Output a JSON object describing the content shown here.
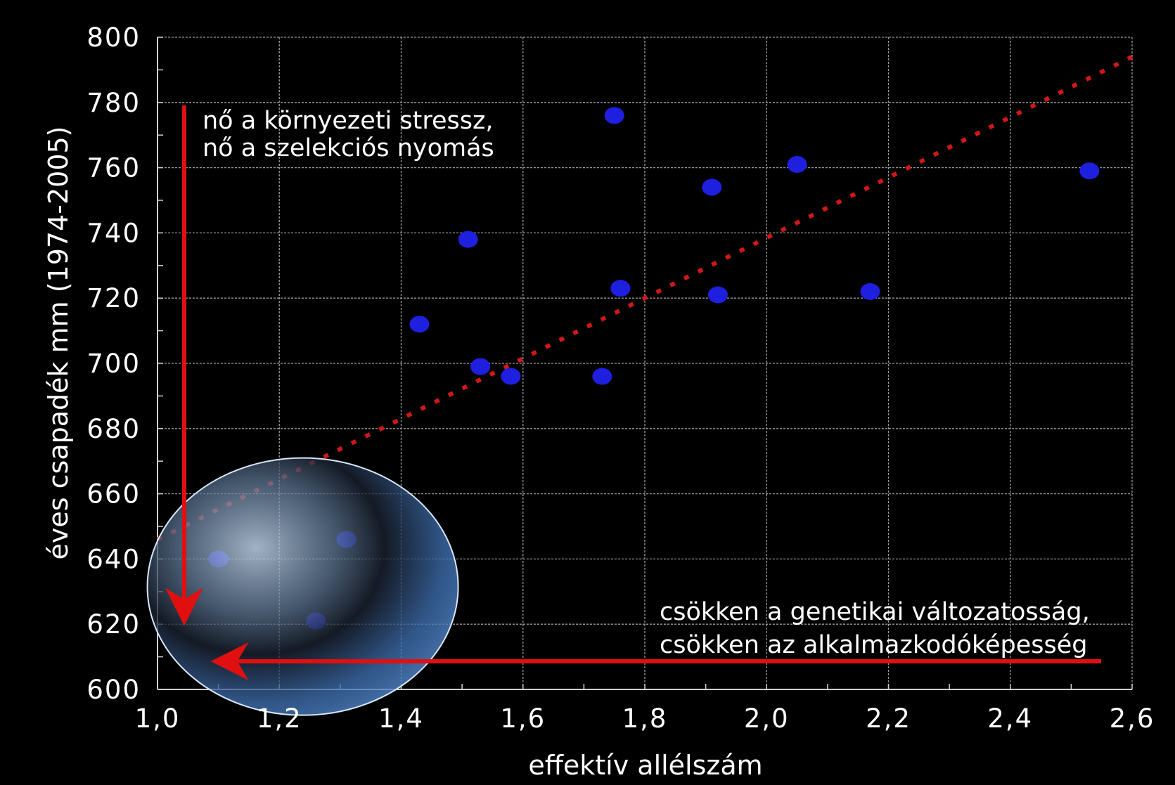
{
  "chart_data": {
    "type": "scatter",
    "xlabel": "effektív allélszám",
    "ylabel": "éves csapadék mm (1974-2005)",
    "xlim": [
      1.0,
      2.6
    ],
    "ylim": [
      600,
      800
    ],
    "x_ticks": [
      1.0,
      1.2,
      1.4,
      1.6,
      1.8,
      2.0,
      2.2,
      2.4,
      2.6
    ],
    "x_tick_labels": [
      "1,0",
      "1,2",
      "1,4",
      "1,6",
      "1,8",
      "2,0",
      "2,2",
      "2,4",
      "2,6"
    ],
    "y_ticks": [
      600,
      620,
      640,
      660,
      680,
      700,
      720,
      740,
      760,
      780,
      800
    ],
    "y_tick_labels": [
      "600",
      "620",
      "640",
      "660",
      "680",
      "700",
      "720",
      "740",
      "760",
      "780",
      "800"
    ],
    "grid": true,
    "points": [
      {
        "x": 1.1,
        "y": 640
      },
      {
        "x": 1.26,
        "y": 621
      },
      {
        "x": 1.31,
        "y": 646
      },
      {
        "x": 1.43,
        "y": 712
      },
      {
        "x": 1.51,
        "y": 738
      },
      {
        "x": 1.53,
        "y": 699
      },
      {
        "x": 1.58,
        "y": 696
      },
      {
        "x": 1.73,
        "y": 696
      },
      {
        "x": 1.75,
        "y": 776
      },
      {
        "x": 1.76,
        "y": 723
      },
      {
        "x": 1.91,
        "y": 754
      },
      {
        "x": 1.92,
        "y": 721
      },
      {
        "x": 2.05,
        "y": 761
      },
      {
        "x": 2.17,
        "y": 722
      },
      {
        "x": 2.53,
        "y": 759
      }
    ],
    "trendline": {
      "x": [
        1.0,
        2.6
      ],
      "y": [
        646,
        794
      ],
      "style": "dotted"
    },
    "annotations": {
      "vertical_arrow": [
        "nő a környezeti stressz,",
        "nő a szelekciós nyomás"
      ],
      "horizontal_arrow": [
        "csökken a genetikai változatosság,",
        "csökken az alkalmazkodóképesség"
      ]
    },
    "colors": {
      "background": "#000000",
      "points": "#1f1fe0",
      "trendline": "#d01818",
      "arrows": "#e01010",
      "grid": "#9a9a9a",
      "text": "#ffffff"
    }
  }
}
